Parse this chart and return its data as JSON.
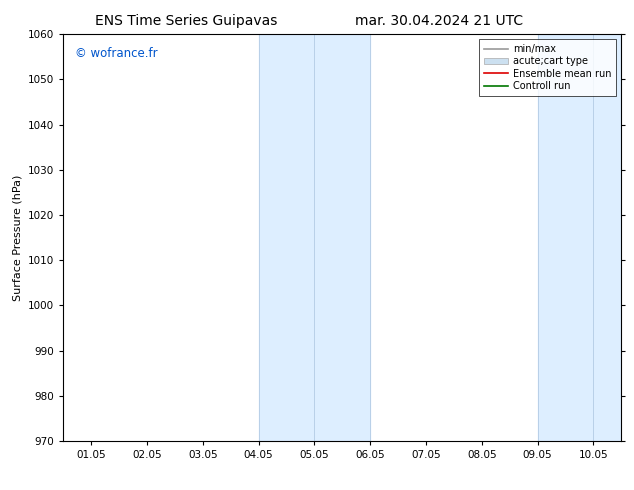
{
  "title_left": "ENS Time Series Guipavas",
  "title_right": "mar. 30.04.2024 21 UTC",
  "ylabel": "Surface Pressure (hPa)",
  "ylim": [
    970,
    1060
  ],
  "yticks": [
    970,
    980,
    990,
    1000,
    1010,
    1020,
    1030,
    1040,
    1050,
    1060
  ],
  "xtick_labels": [
    "01.05",
    "02.05",
    "03.05",
    "04.05",
    "05.05",
    "06.05",
    "07.05",
    "08.05",
    "09.05",
    "10.05"
  ],
  "xtick_positions": [
    0,
    1,
    2,
    3,
    4,
    5,
    6,
    7,
    8,
    9
  ],
  "xlim": [
    -0.5,
    9.5
  ],
  "shaded_regions": [
    {
      "xmin": 3,
      "xmax": 5,
      "color": "#ddeeff"
    },
    {
      "xmin": 8,
      "xmax": 9.5,
      "color": "#ddeeff"
    }
  ],
  "shaded_vlines": [
    3,
    4,
    5,
    8,
    9
  ],
  "shaded_vline_color": "#b8d0e8",
  "watermark": "© wofrance.fr",
  "watermark_color": "#0055cc",
  "background_color": "#ffffff",
  "legend_items": [
    {
      "label": "min/max",
      "color": "#999999",
      "lw": 1.2,
      "type": "line"
    },
    {
      "label": "acute;cart type",
      "color": "#cce0f0",
      "lw": 8,
      "type": "patch"
    },
    {
      "label": "Ensemble mean run",
      "color": "#dd0000",
      "lw": 1.2,
      "type": "line"
    },
    {
      "label": "Controll run",
      "color": "#007700",
      "lw": 1.2,
      "type": "line"
    }
  ],
  "title_fontsize": 10,
  "axis_label_fontsize": 8,
  "tick_fontsize": 7.5,
  "watermark_fontsize": 8.5,
  "legend_fontsize": 7
}
